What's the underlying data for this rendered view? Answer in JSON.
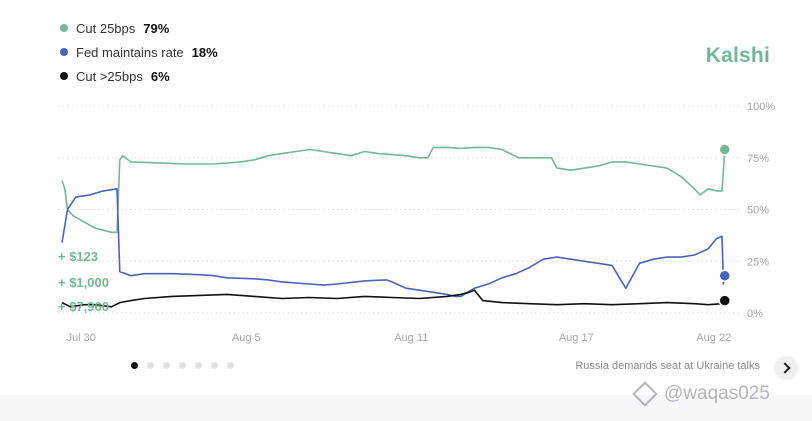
{
  "legend": {
    "items": [
      {
        "label": "Cut 25bps",
        "value": "79%",
        "color": "#73b797"
      },
      {
        "label": "Fed maintains rate",
        "value": "18%",
        "color": "#4a63bd"
      },
      {
        "label": "Cut >25bps",
        "value": "6%",
        "color": "#111111"
      }
    ]
  },
  "brand": "Kalshi",
  "chart_data": {
    "type": "line",
    "xlim": [
      0,
      24
    ],
    "ylim": [
      0,
      100
    ],
    "y_ticks": [
      "0%",
      "25%",
      "50%",
      "75%",
      "100%"
    ],
    "x_ticks": [
      {
        "label": "Jul 30",
        "x": 0.7
      },
      {
        "label": "Aug 5",
        "x": 6.7
      },
      {
        "label": "Aug 11",
        "x": 12.7
      },
      {
        "label": "Aug 17",
        "x": 18.7
      },
      {
        "label": "Aug 22",
        "x": 23.7
      }
    ],
    "grid": true,
    "series": [
      {
        "name": "Cut 25bps",
        "color": "#73b797",
        "end_value": 79,
        "points": [
          [
            0,
            64
          ],
          [
            0.1,
            60
          ],
          [
            0.2,
            50
          ],
          [
            0.4,
            47
          ],
          [
            0.8,
            44
          ],
          [
            1.2,
            41
          ],
          [
            1.5,
            40
          ],
          [
            1.8,
            39
          ],
          [
            2.0,
            39
          ],
          [
            2.1,
            74
          ],
          [
            2.2,
            76
          ],
          [
            2.5,
            73
          ],
          [
            3.5,
            72.5
          ],
          [
            4.5,
            72
          ],
          [
            5.5,
            72
          ],
          [
            6.5,
            73
          ],
          [
            7,
            74
          ],
          [
            7.5,
            76
          ],
          [
            8,
            77
          ],
          [
            8.5,
            78
          ],
          [
            9,
            79
          ],
          [
            9.5,
            78
          ],
          [
            10,
            77
          ],
          [
            10.5,
            76
          ],
          [
            11,
            78
          ],
          [
            11.5,
            77
          ],
          [
            12,
            76.5
          ],
          [
            12.5,
            76
          ],
          [
            13,
            75
          ],
          [
            13.3,
            75
          ],
          [
            13.5,
            80
          ],
          [
            14,
            80
          ],
          [
            14.5,
            79.5
          ],
          [
            15,
            80
          ],
          [
            15.5,
            80
          ],
          [
            16,
            79
          ],
          [
            16.3,
            77
          ],
          [
            16.6,
            75
          ],
          [
            17,
            75
          ],
          [
            17.5,
            75
          ],
          [
            17.8,
            75
          ],
          [
            18,
            70
          ],
          [
            18.5,
            69
          ],
          [
            19,
            70
          ],
          [
            19.5,
            71
          ],
          [
            20,
            73
          ],
          [
            20.5,
            73
          ],
          [
            21,
            72
          ],
          [
            21.5,
            71
          ],
          [
            22,
            70
          ],
          [
            22.5,
            66
          ],
          [
            23,
            60
          ],
          [
            23.2,
            57
          ],
          [
            23.5,
            60
          ],
          [
            23.8,
            59
          ],
          [
            24.0,
            59
          ],
          [
            24.1,
            79
          ]
        ]
      },
      {
        "name": "Fed maintains rate",
        "color": "#4a63bd",
        "end_value": 18,
        "points": [
          [
            0,
            34
          ],
          [
            0.2,
            50
          ],
          [
            0.5,
            56
          ],
          [
            1,
            57
          ],
          [
            1.5,
            59
          ],
          [
            2.0,
            60
          ],
          [
            2.1,
            20
          ],
          [
            2.5,
            18
          ],
          [
            3,
            19
          ],
          [
            4,
            19
          ],
          [
            5,
            18.5
          ],
          [
            5.5,
            18
          ],
          [
            6,
            17
          ],
          [
            7,
            16.5
          ],
          [
            7.5,
            16
          ],
          [
            8,
            15
          ],
          [
            9,
            14
          ],
          [
            9.5,
            13.5
          ],
          [
            10,
            14
          ],
          [
            11,
            15.5
          ],
          [
            11.8,
            16
          ],
          [
            12,
            15
          ],
          [
            12.5,
            12
          ],
          [
            13,
            11
          ],
          [
            13.5,
            10
          ],
          [
            14,
            9
          ],
          [
            14.3,
            8
          ],
          [
            14.5,
            8
          ],
          [
            15,
            12
          ],
          [
            15.5,
            14
          ],
          [
            16,
            17
          ],
          [
            16.5,
            19
          ],
          [
            17,
            22
          ],
          [
            17.5,
            26
          ],
          [
            18,
            27
          ],
          [
            18.5,
            26
          ],
          [
            19,
            25
          ],
          [
            19.5,
            24
          ],
          [
            20,
            23
          ],
          [
            20.5,
            12
          ],
          [
            21,
            24
          ],
          [
            21.5,
            26
          ],
          [
            22,
            27
          ],
          [
            22.5,
            27
          ],
          [
            23,
            28
          ],
          [
            23.5,
            31
          ],
          [
            23.8,
            36
          ],
          [
            24.0,
            37
          ],
          [
            24.05,
            14
          ],
          [
            24.1,
            18
          ]
        ]
      },
      {
        "name": "Cut >25bps",
        "color": "#111111",
        "end_value": 6,
        "points": [
          [
            0,
            5
          ],
          [
            0.3,
            3
          ],
          [
            0.8,
            4
          ],
          [
            1.2,
            4
          ],
          [
            1.8,
            3
          ],
          [
            2.1,
            5
          ],
          [
            2.5,
            6
          ],
          [
            3,
            7
          ],
          [
            4,
            8
          ],
          [
            5,
            8.5
          ],
          [
            6,
            9
          ],
          [
            7,
            8
          ],
          [
            8,
            7
          ],
          [
            9,
            7.5
          ],
          [
            10,
            7
          ],
          [
            11,
            8
          ],
          [
            12,
            7.5
          ],
          [
            13,
            7
          ],
          [
            14,
            8
          ],
          [
            14.5,
            9
          ],
          [
            14.8,
            10
          ],
          [
            15,
            11
          ],
          [
            15.3,
            6
          ],
          [
            16,
            5
          ],
          [
            17,
            4.5
          ],
          [
            18,
            4
          ],
          [
            19,
            4.5
          ],
          [
            20,
            4
          ],
          [
            21,
            4.5
          ],
          [
            22,
            5
          ],
          [
            23,
            4.5
          ],
          [
            23.5,
            4
          ],
          [
            24.0,
            4.5
          ],
          [
            24.1,
            6
          ]
        ]
      }
    ],
    "annotations": [
      {
        "label": "+ $123",
        "series": "Cut 25bps"
      },
      {
        "label": "+ $1,000",
        "series": "Fed maintains rate"
      },
      {
        "label": "+ $7,960",
        "series": "Cut >25bps"
      }
    ]
  },
  "carousel": {
    "dots": 7,
    "active": 0
  },
  "headline": "Russia demands seat at Ukraine talks",
  "watermark": "@waqas025"
}
